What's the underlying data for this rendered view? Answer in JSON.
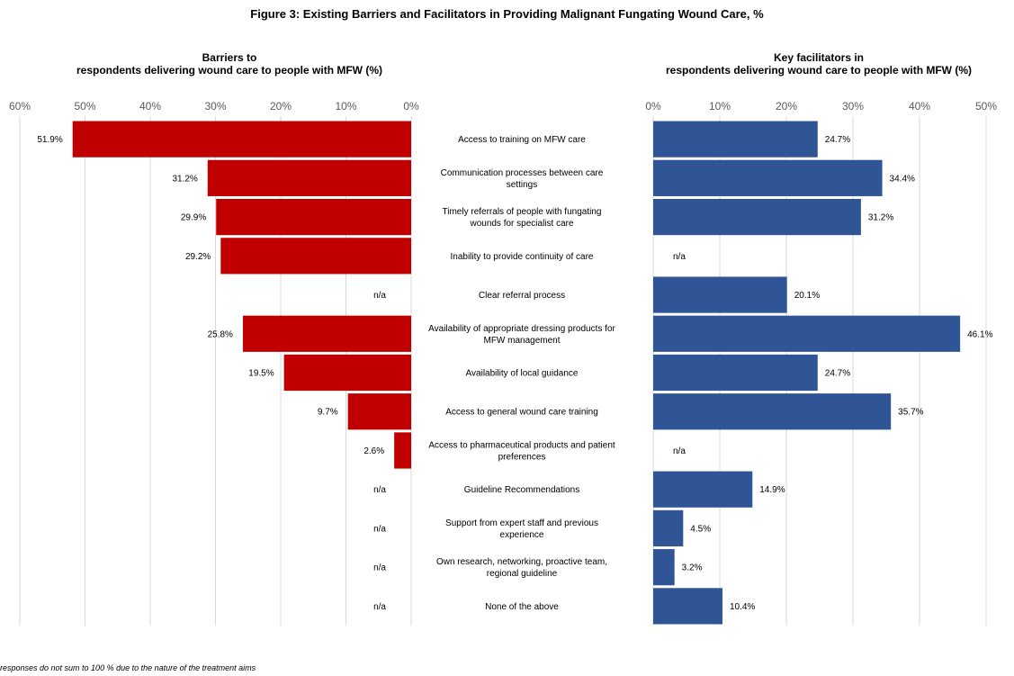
{
  "figure_title": "Figure 3: Existing Barriers and Facilitators in Providing Malignant Fungating Wound Care, %",
  "footnote": "responses  do not sum to 100 % due to the nature  of the treatment  aims",
  "colors": {
    "barriers": "#C00000",
    "facilitators": "#2F5597",
    "grid": "#D9D9D9",
    "axis_text": "#595959"
  },
  "chart_data": [
    {
      "type": "bar",
      "orientation": "horizontal",
      "direction": "reversed",
      "title_lines": [
        "Barriers to",
        "respondents delivering wound care to people with MFW (%)"
      ],
      "xlim": [
        0,
        60
      ],
      "ticks": [
        "0%",
        "10%",
        "20%",
        "30%",
        "40%",
        "50%",
        "60%"
      ],
      "grid": true,
      "categories": [
        "Access to training on MFW care",
        "Communication processes between care settings",
        "Timely referrals of people with fungating wounds for specialist care",
        "Inability to provide continuity of care",
        "Clear referral process",
        "Availability of appropriate dressing products for MFW management",
        "Availability of local guidance",
        "Access to general wound care training",
        "Access to pharmaceutical products and patient preferences",
        "Guideline Recommendations",
        "Support from expert staff and previous experience",
        "Own research, networking, proactive team, regional guideline",
        "None of the above"
      ],
      "values": [
        51.9,
        31.2,
        29.9,
        29.2,
        null,
        25.8,
        19.5,
        9.7,
        2.6,
        null,
        null,
        null,
        null
      ],
      "labels": [
        "51.9%",
        "31.2%",
        "29.9%",
        "29.2%",
        "n/a",
        "25.8%",
        "19.5%",
        "9.7%",
        "2.6%",
        "n/a",
        "n/a",
        "n/a",
        "n/a"
      ]
    },
    {
      "type": "bar",
      "orientation": "horizontal",
      "direction": "normal",
      "title_lines": [
        "Key facilitators in",
        "respondents delivering wound care to people with MFW (%)"
      ],
      "xlim": [
        0,
        50
      ],
      "ticks": [
        "0%",
        "10%",
        "20%",
        "30%",
        "40%",
        "50%"
      ],
      "grid": true,
      "categories": [
        "Access to training on MFW care",
        "Communication processes between care settings",
        "Timely referrals of people with fungating wounds for specialist care",
        "Inability to provide continuity of care",
        "Clear referral process",
        "Availability of appropriate dressing products for MFW management",
        "Availability of local guidance",
        "Access to general wound care training",
        "Access to pharmaceutical products and patient preferences",
        "Guideline Recommendations",
        "Support from expert staff and previous experience",
        "Own research, networking, proactive team, regional guideline",
        "None of the above"
      ],
      "values": [
        24.7,
        34.4,
        31.2,
        null,
        20.1,
        46.1,
        24.7,
        35.7,
        null,
        14.9,
        4.5,
        3.2,
        10.4
      ],
      "labels": [
        "24.7%",
        "34.4%",
        "31.2%",
        "n/a",
        "20.1%",
        "46.1%",
        "24.7%",
        "35.7%",
        "n/a",
        "14.9%",
        "4.5%",
        "3.2%",
        "10.4%"
      ]
    }
  ],
  "category_label_lines": [
    [
      "Access to training on MFW care"
    ],
    [
      "Communication processes between care",
      "settings"
    ],
    [
      "Timely referrals of people with fungating",
      "wounds for specialist care"
    ],
    [
      "Inability to provide continuity of care"
    ],
    [
      "Clear referral process"
    ],
    [
      "Availability of appropriate dressing products for",
      "MFW management"
    ],
    [
      "Availability of local guidance"
    ],
    [
      "Access to general wound care training"
    ],
    [
      "Access to pharmaceutical products and patient",
      "preferences"
    ],
    [
      "Guideline Recommendations"
    ],
    [
      "Support from expert staff and previous",
      "experience"
    ],
    [
      "Own research, networking, proactive team,",
      "regional guideline"
    ],
    [
      "None of the above"
    ]
  ]
}
